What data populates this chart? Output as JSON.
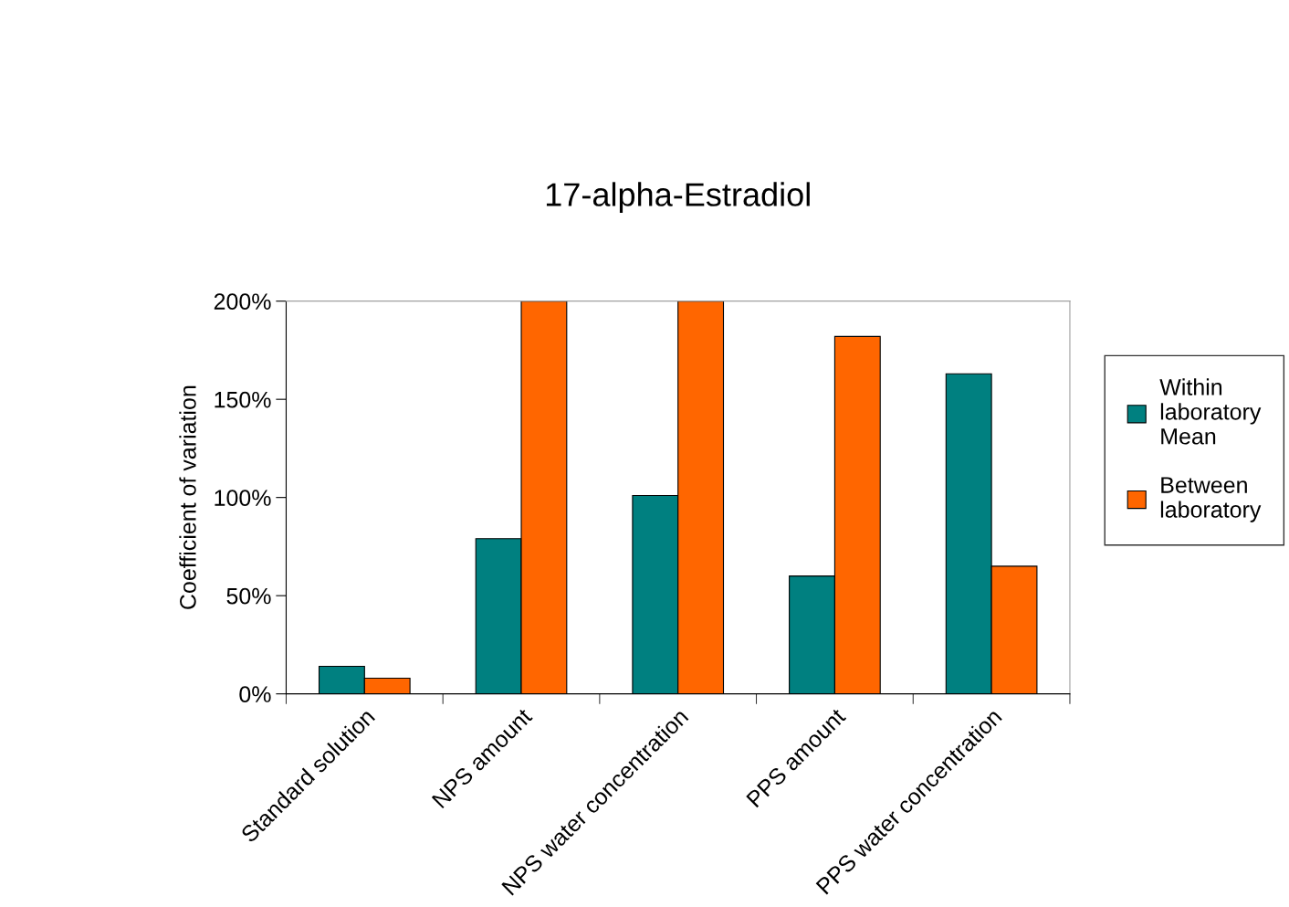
{
  "chart_data": {
    "type": "bar",
    "title": "17-alpha-Estradiol",
    "ylabel": "Coefficient of variation",
    "categories": [
      "Standard solution",
      "NPS amount",
      "NPS water concentration",
      "PPS amount",
      "PPS water concentration"
    ],
    "series": [
      {
        "name": "Within laboratory Mean",
        "color": "#008080",
        "values": [
          14,
          79,
          101,
          60,
          163
        ]
      },
      {
        "name": "Between laboratory",
        "color": "#ff6600",
        "values": [
          8,
          200,
          200,
          182,
          65
        ]
      }
    ],
    "ylim": [
      0,
      200
    ],
    "yticks": [
      {
        "value": 0,
        "label": "0%"
      },
      {
        "value": 50,
        "label": "50%"
      },
      {
        "value": 100,
        "label": "100%"
      },
      {
        "value": 150,
        "label": "150%"
      },
      {
        "value": 200,
        "label": "200%"
      }
    ],
    "grid": false,
    "legend": "right"
  }
}
